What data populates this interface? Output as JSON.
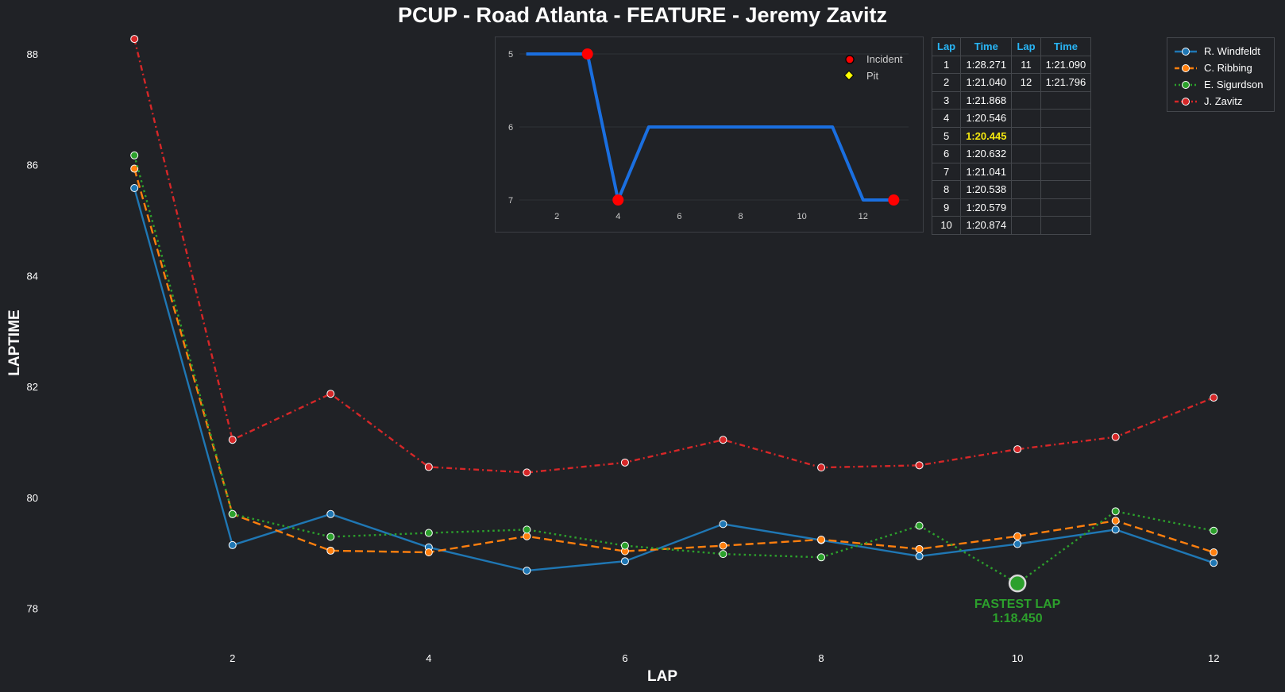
{
  "title": "PCUP - Road Atlanta - FEATURE - Jeremy Zavitz",
  "chart_data": [
    {
      "type": "line",
      "xlabel": "LAP",
      "ylabel": "LAPTIME",
      "xlim": [
        0.1,
        12.5
      ],
      "ylim": [
        77.45,
        88.4
      ],
      "xticks": [
        2,
        4,
        6,
        8,
        10,
        12
      ],
      "yticks": [
        78,
        80,
        82,
        84,
        86,
        88
      ],
      "grid": false,
      "legend_position": "top-right",
      "x": [
        1,
        2,
        3,
        4,
        5,
        6,
        7,
        8,
        9,
        10,
        11,
        12
      ],
      "series": [
        {
          "name": "R. Windfeldt",
          "color": "#1f77b4",
          "dash": "solid",
          "values": [
            85.58,
            79.14,
            79.7,
            79.1,
            78.68,
            78.85,
            79.52,
            79.23,
            78.94,
            79.16,
            79.42,
            78.82
          ]
        },
        {
          "name": "C. Ribbing",
          "color": "#ff7f0e",
          "dash": "dashed",
          "values": [
            85.93,
            79.7,
            79.04,
            79.01,
            79.3,
            79.03,
            79.13,
            79.24,
            79.07,
            79.3,
            79.58,
            79.01
          ]
        },
        {
          "name": "E. Sigurdson",
          "color": "#2ca02c",
          "dash": "dotted",
          "values": [
            86.17,
            79.7,
            79.29,
            79.36,
            79.42,
            79.13,
            78.98,
            78.92,
            79.49,
            78.45,
            79.75,
            79.4
          ]
        },
        {
          "name": "J. Zavitz",
          "color": "#d62728",
          "dash": "dashdot",
          "values": [
            88.27,
            81.04,
            81.87,
            80.55,
            80.45,
            80.63,
            81.04,
            80.54,
            80.58,
            80.87,
            81.09,
            81.8
          ]
        }
      ],
      "annotation": {
        "x": 10,
        "y": 78.45,
        "line1": "FASTEST LAP",
        "line2": "1:18.450",
        "color": "#2ca02c"
      }
    },
    {
      "type": "line",
      "xlim": [
        0.0,
        13.95
      ],
      "ylim": [
        7.2,
        4.9
      ],
      "xticks": [
        2,
        4,
        6,
        8,
        10,
        12
      ],
      "yticks": [
        5,
        6,
        7
      ],
      "color": "#1a6fe0",
      "x": [
        1,
        2,
        3,
        4,
        5,
        6,
        7,
        8,
        9,
        10,
        11,
        12,
        13
      ],
      "values": [
        5,
        5,
        5,
        7,
        6,
        6,
        6,
        6,
        6,
        6,
        6,
        7,
        7
      ],
      "incidents": [
        3,
        4,
        13
      ],
      "pits": [],
      "legend": {
        "incident": "Incident",
        "pit": "Pit"
      },
      "incident_color": "#ff0000",
      "pit_color": "#ffff00"
    }
  ],
  "lap_table": {
    "headers": [
      "Lap",
      "Time",
      "Lap",
      "Time"
    ],
    "rows": [
      [
        "1",
        "1:28.271",
        "11",
        "1:21.090"
      ],
      [
        "2",
        "1:21.040",
        "12",
        "1:21.796"
      ],
      [
        "3",
        "1:21.868",
        "",
        ""
      ],
      [
        "4",
        "1:20.546",
        "",
        ""
      ],
      [
        "5",
        "1:20.445",
        "",
        ""
      ],
      [
        "6",
        "1:20.632",
        "",
        ""
      ],
      [
        "7",
        "1:21.041",
        "",
        ""
      ],
      [
        "8",
        "1:20.538",
        "",
        ""
      ],
      [
        "9",
        "1:20.579",
        "",
        ""
      ],
      [
        "10",
        "1:20.874",
        "",
        ""
      ]
    ],
    "best_row": 4,
    "header_color": "#29b6f6",
    "best_color": "#f5e90f"
  }
}
